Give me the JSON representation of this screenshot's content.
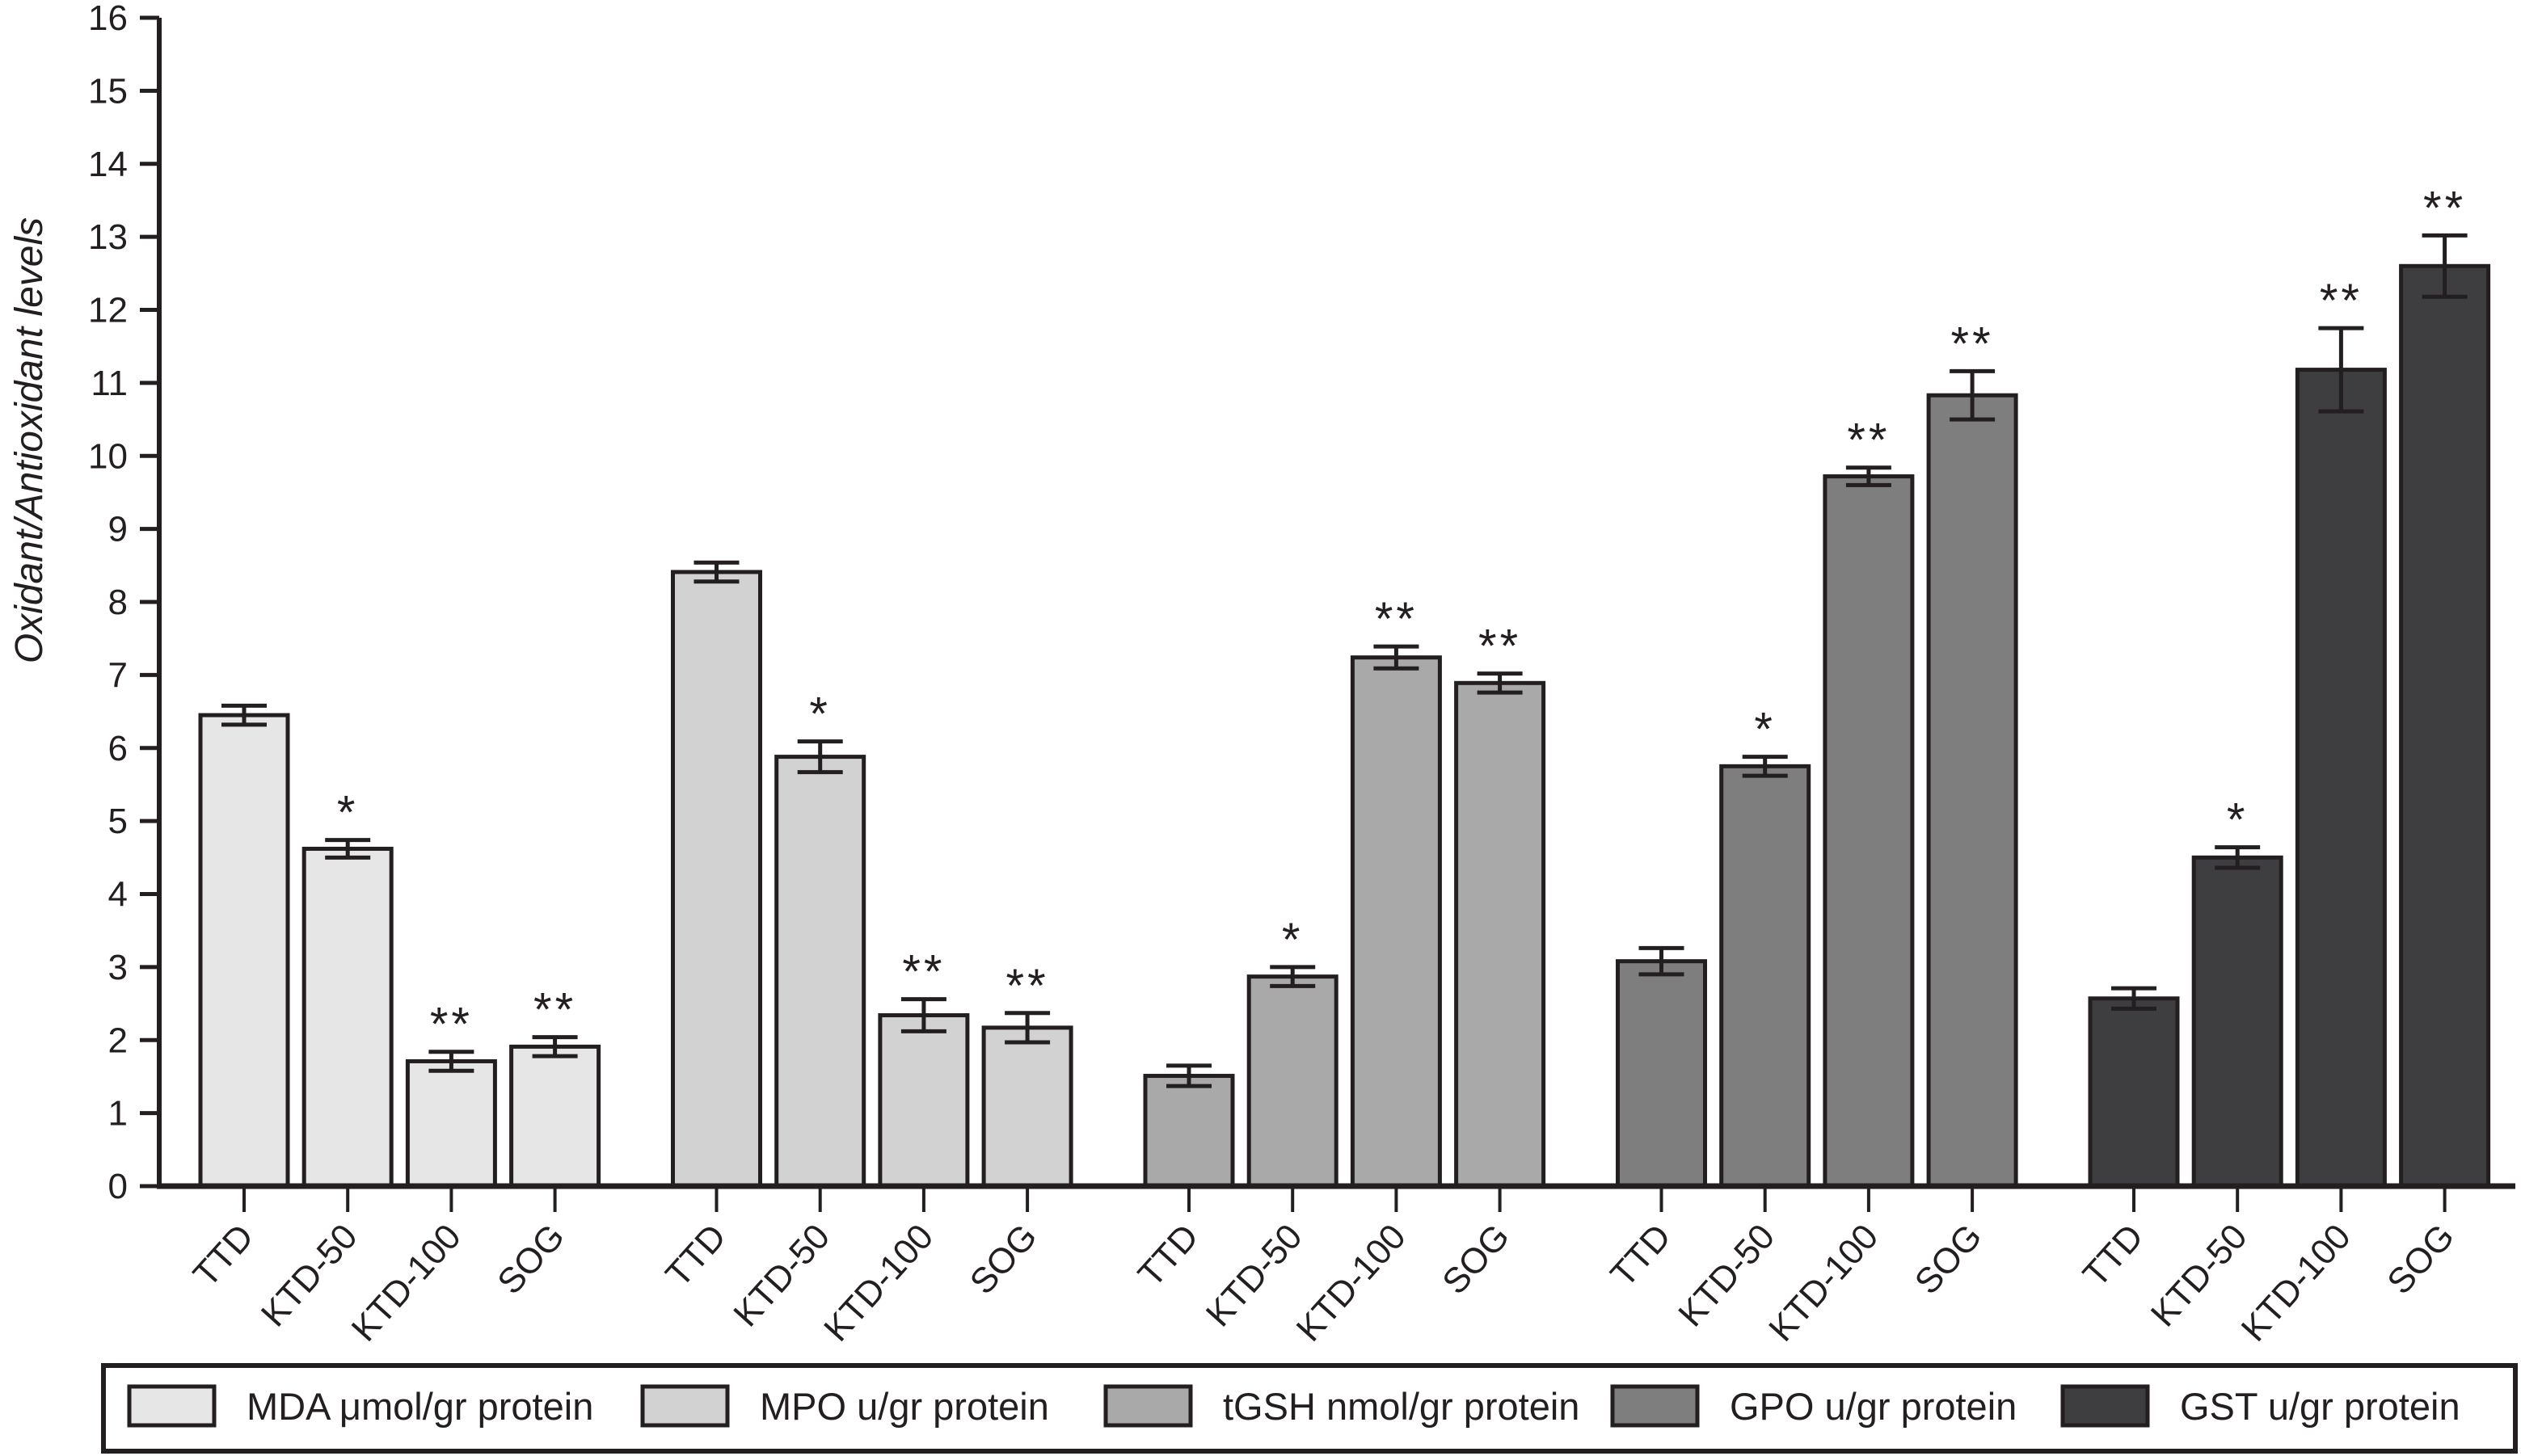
{
  "figure": {
    "background": "#ffffff",
    "ink_color": "#231f20"
  },
  "y_axis": {
    "label": "Oxidant/Antioxidant levels",
    "min": 0,
    "max": 16
  },
  "chart_data": {
    "type": "bar",
    "title": "",
    "xlabel": "",
    "ylabel": "Oxidant/Antioxidant levels",
    "ylim": [
      0,
      16
    ],
    "y_ticks": [
      0,
      1,
      2,
      3,
      4,
      5,
      6,
      7,
      8,
      9,
      10,
      11,
      12,
      13,
      14,
      15,
      16
    ],
    "grid": false,
    "legend_position": "bottom",
    "categories": [
      "TTD",
      "KTD-50",
      "KTD-100",
      "SOG"
    ],
    "series": [
      {
        "name": "MDA μmol/gr protein",
        "color": "#e6e6e6",
        "values": [
          6.45,
          4.62,
          1.71,
          1.91
        ],
        "errors": [
          0.13,
          0.12,
          0.13,
          0.13
        ],
        "significance": [
          "",
          "*",
          "**",
          "**"
        ]
      },
      {
        "name": "MPO u/gr protein",
        "color": "#d2d2d2",
        "values": [
          8.41,
          5.88,
          2.34,
          2.17
        ],
        "errors": [
          0.13,
          0.21,
          0.22,
          0.2
        ],
        "significance": [
          "",
          "*",
          "**",
          "**"
        ]
      },
      {
        "name": "tGSH nmol/gr protein",
        "color": "#a9a9a9",
        "values": [
          1.51,
          2.87,
          7.24,
          6.89
        ],
        "errors": [
          0.14,
          0.13,
          0.15,
          0.13
        ],
        "significance": [
          "",
          "*",
          "**",
          "**"
        ]
      },
      {
        "name": "GPO u/gr protein",
        "color": "#7e7e7e",
        "values": [
          3.08,
          5.75,
          9.72,
          10.83
        ],
        "errors": [
          0.18,
          0.13,
          0.12,
          0.33
        ],
        "significance": [
          "",
          "*",
          "**",
          "**"
        ]
      },
      {
        "name": "GST u/gr protein",
        "color": "#3e3e40",
        "values": [
          2.57,
          4.5,
          11.18,
          12.6
        ],
        "errors": [
          0.14,
          0.14,
          0.57,
          0.42
        ],
        "significance": [
          "",
          "*",
          "**",
          "**"
        ]
      }
    ]
  }
}
